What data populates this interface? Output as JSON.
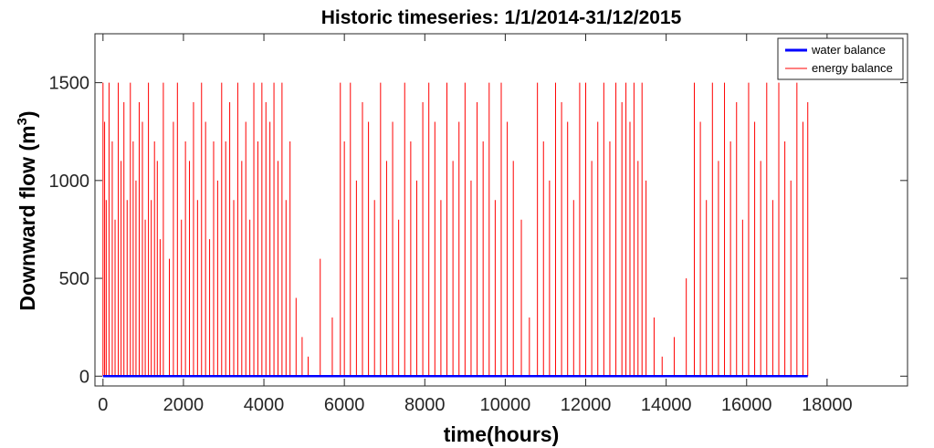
{
  "chart_data": {
    "type": "line",
    "title": "Historic timeseries: 1/1/2014-31/12/2015",
    "xlabel": "time(hours)",
    "ylabel_main": "Downward flow (m",
    "ylabel_sup": "3",
    "ylabel_close": ")",
    "xlim": [
      -200,
      20000
    ],
    "ylim": [
      -50,
      1750
    ],
    "xticks": [
      0,
      2000,
      4000,
      6000,
      8000,
      10000,
      12000,
      14000,
      16000,
      18000
    ],
    "yticks": [
      0,
      500,
      1000,
      1500
    ],
    "grid": false,
    "legend_position": "top-right",
    "series": [
      {
        "name": "water balance",
        "color": "#0000ff",
        "x": [
          0,
          17520
        ],
        "values": [
          0,
          0
        ]
      },
      {
        "name": "energy balance",
        "color": "#ff0000",
        "x": [
          0,
          40,
          80,
          150,
          230,
          300,
          380,
          450,
          520,
          600,
          680,
          750,
          820,
          900,
          980,
          1050,
          1130,
          1200,
          1280,
          1350,
          1420,
          1500,
          1650,
          1750,
          1850,
          1950,
          2050,
          2150,
          2250,
          2350,
          2450,
          2550,
          2650,
          2750,
          2850,
          2950,
          3050,
          3150,
          3250,
          3350,
          3450,
          3550,
          3650,
          3750,
          3850,
          3950,
          4050,
          4150,
          4250,
          4350,
          4450,
          4550,
          4650,
          4800,
          4950,
          5100,
          5400,
          5700,
          5900,
          6000,
          6150,
          6300,
          6450,
          6600,
          6750,
          6900,
          7050,
          7200,
          7350,
          7500,
          7650,
          7800,
          7950,
          8100,
          8250,
          8400,
          8550,
          8700,
          8850,
          9000,
          9150,
          9300,
          9450,
          9600,
          9750,
          9900,
          10050,
          10200,
          10400,
          10600,
          10800,
          10950,
          11100,
          11250,
          11400,
          11550,
          11700,
          11850,
          12000,
          12150,
          12300,
          12450,
          12600,
          12750,
          12900,
          13000,
          13100,
          13200,
          13300,
          13400,
          13500,
          13700,
          13900,
          14200,
          14500,
          14700,
          14850,
          15000,
          15150,
          15300,
          15450,
          15600,
          15750,
          15900,
          16050,
          16200,
          16350,
          16500,
          16650,
          16800,
          16950,
          17100,
          17250,
          17400,
          17520
        ],
        "values": [
          1500,
          1300,
          900,
          1500,
          1200,
          800,
          1500,
          1100,
          1400,
          900,
          1500,
          1200,
          1000,
          1400,
          1300,
          800,
          1500,
          900,
          1200,
          1100,
          700,
          1500,
          600,
          1300,
          1500,
          800,
          1200,
          1100,
          1400,
          900,
          1500,
          1300,
          700,
          1200,
          1000,
          1500,
          1200,
          1400,
          900,
          1500,
          1100,
          1300,
          800,
          1500,
          1200,
          1500,
          1400,
          1300,
          1500,
          1100,
          1500,
          900,
          1200,
          400,
          200,
          100,
          600,
          300,
          1500,
          1200,
          1500,
          1000,
          1400,
          1300,
          900,
          1500,
          1100,
          1300,
          800,
          1500,
          1200,
          1000,
          1400,
          1500,
          1300,
          900,
          1500,
          1100,
          1300,
          1500,
          1000,
          1400,
          1200,
          1500,
          900,
          1500,
          1300,
          1100,
          800,
          300,
          1500,
          1200,
          1000,
          1500,
          1400,
          1300,
          900,
          1500,
          1500,
          1100,
          1300,
          1500,
          1200,
          1500,
          1400,
          1500,
          1300,
          1500,
          1100,
          1500,
          1000,
          300,
          100,
          200,
          500,
          1500,
          1300,
          900,
          1500,
          1100,
          1500,
          1200,
          1400,
          800,
          1500,
          1300,
          1100,
          1500,
          900,
          1500,
          1200,
          1000,
          1500,
          1300,
          1400
        ]
      }
    ]
  }
}
